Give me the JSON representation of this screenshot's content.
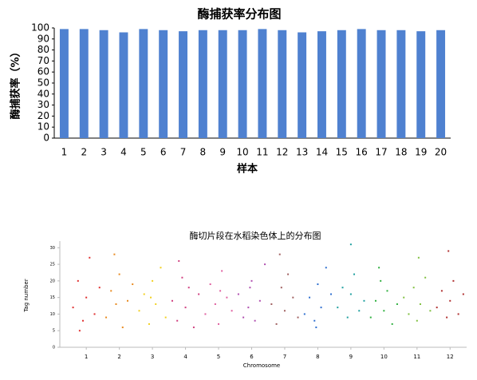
{
  "chart_data": [
    {
      "type": "bar",
      "title": "酶捕获率分布图",
      "y_label": "酶捕获率（%）",
      "x_label": "样本",
      "categories": [
        "1",
        "2",
        "3",
        "4",
        "5",
        "6",
        "7",
        "8",
        "9",
        "10",
        "11",
        "12",
        "13",
        "14",
        "15",
        "16",
        "17",
        "18",
        "19",
        "20"
      ],
      "values": [
        99,
        99,
        98,
        96,
        99,
        98,
        97,
        98,
        98,
        98,
        99,
        98,
        96,
        97,
        98,
        99,
        98,
        98,
        97,
        98
      ],
      "color": "#4f81d0",
      "ylim": [
        0,
        100
      ],
      "yticks": [
        0,
        10,
        20,
        30,
        40,
        50,
        60,
        70,
        80,
        90,
        100
      ]
    },
    {
      "type": "scatter",
      "title": "酶切片段在水稻染色体上的分布图",
      "x_label": "Chromosome",
      "y_label": "Tag number",
      "xlim": [
        0.2,
        12.5
      ],
      "xticks": [
        1,
        2,
        3,
        4,
        5,
        6,
        7,
        8,
        9,
        10,
        11,
        12
      ],
      "ylim": [
        0,
        32
      ],
      "yticks": [
        0,
        5,
        10,
        15,
        20,
        25,
        30
      ],
      "series": [
        {
          "color": "#e03030",
          "x": [
            0.6,
            0.75,
            0.9,
            1.0,
            1.1,
            1.25,
            1.4,
            0.8
          ],
          "values": [
            12,
            20,
            8,
            15,
            27,
            10,
            18,
            5
          ]
        },
        {
          "color": "#e88a20",
          "x": [
            1.6,
            1.75,
            1.9,
            2.0,
            2.1,
            2.25,
            2.4,
            1.85
          ],
          "values": [
            9,
            17,
            13,
            22,
            6,
            14,
            19,
            28
          ]
        },
        {
          "color": "#f2d020",
          "x": [
            2.6,
            2.75,
            2.9,
            3.0,
            3.1,
            3.25,
            3.4,
            2.95
          ],
          "values": [
            11,
            16,
            7,
            20,
            13,
            24,
            9,
            15
          ]
        },
        {
          "color": "#d04080",
          "x": [
            3.6,
            3.75,
            3.9,
            4.0,
            4.1,
            4.25,
            4.4,
            3.8
          ],
          "values": [
            14,
            8,
            21,
            12,
            18,
            6,
            16,
            26
          ]
        },
        {
          "color": "#e060a0",
          "x": [
            4.6,
            4.75,
            4.9,
            5.0,
            5.1,
            5.25,
            5.4,
            5.05
          ],
          "values": [
            10,
            19,
            13,
            7,
            23,
            15,
            11,
            17
          ]
        },
        {
          "color": "#b050b0",
          "x": [
            5.6,
            5.75,
            5.9,
            6.0,
            6.1,
            6.25,
            6.4,
            5.95
          ],
          "values": [
            16,
            9,
            12,
            20,
            8,
            14,
            25,
            18
          ]
        },
        {
          "color": "#a06060",
          "x": [
            6.6,
            6.75,
            6.9,
            7.0,
            7.1,
            7.25,
            7.4,
            6.85
          ],
          "values": [
            13,
            7,
            18,
            11,
            22,
            15,
            9,
            28
          ]
        },
        {
          "color": "#3070d0",
          "x": [
            7.6,
            7.75,
            7.9,
            8.0,
            8.1,
            8.25,
            8.4,
            7.95
          ],
          "values": [
            10,
            15,
            8,
            19,
            12,
            24,
            16,
            6
          ]
        },
        {
          "color": "#20a0a0",
          "x": [
            8.6,
            8.75,
            8.9,
            9.0,
            9.1,
            9.25,
            9.4,
            9.0
          ],
          "values": [
            12,
            18,
            9,
            16,
            22,
            11,
            14,
            31
          ]
        },
        {
          "color": "#30b040",
          "x": [
            9.6,
            9.75,
            9.9,
            10.0,
            10.1,
            10.25,
            10.4,
            9.85
          ],
          "values": [
            9,
            14,
            20,
            11,
            17,
            7,
            13,
            24
          ]
        },
        {
          "color": "#80c040",
          "x": [
            10.6,
            10.75,
            10.9,
            11.0,
            11.1,
            11.25,
            11.4,
            11.05
          ],
          "values": [
            15,
            10,
            18,
            8,
            13,
            21,
            11,
            27
          ]
        },
        {
          "color": "#b03030",
          "x": [
            11.6,
            11.75,
            11.9,
            12.0,
            12.1,
            12.25,
            12.4,
            11.95
          ],
          "values": [
            12,
            17,
            9,
            14,
            20,
            10,
            16,
            29
          ]
        }
      ]
    }
  ]
}
